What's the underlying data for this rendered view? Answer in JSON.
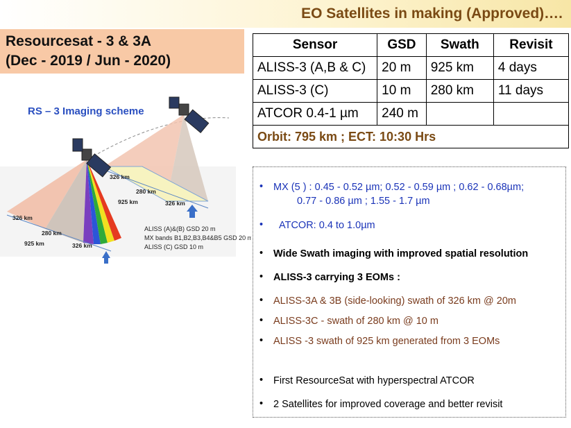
{
  "header": {
    "title": "EO Satellites in making (Approved)…."
  },
  "mission": {
    "name": "Resourcesat - 3 & 3A",
    "dates": "(Dec - 2019 / Jun - 2020)"
  },
  "diagram": {
    "title": "RS – 3 Imaging scheme",
    "labels": [
      "326 km",
      "280 km",
      "925 km",
      "326 km",
      "326 km",
      "280 km",
      "925 km",
      "326 km"
    ],
    "notes": [
      "ALISS (A)&(B) GSD 20 m",
      "MX bands B1,B2,B3,B4&B5 GSD 20 m",
      "ALISS (C) GSD 10 m"
    ]
  },
  "table": {
    "headers": [
      "Sensor",
      "GSD",
      "Swath",
      "Revisit"
    ],
    "rows": [
      [
        "ALISS-3 (A,B & C)",
        "20 m",
        "925 km",
        "4 days"
      ],
      [
        "ALISS-3 (C)",
        "10 m",
        "280 km",
        "11 days"
      ],
      [
        "ATCOR 0.4-1 µm",
        "240 m"
      ]
    ],
    "footer": "Orbit: 795 km ; ECT: 10:30 Hrs"
  },
  "bullets": [
    {
      "text": "MX (5 ) : 0.45 - 0.52 µm; 0.52 - 0.59 µm ; 0.62 - 0.68µm;",
      "text2": "0.77 - 0.86 µm ; 1.55 - 1.7 µm"
    },
    {
      "text": "ATCOR: 0.4 to 1.0µm"
    },
    {
      "text": "Wide Swath imaging with improved spatial resolution"
    },
    {
      "text": "ALISS-3 carrying 3 EOMs :"
    },
    {
      "text": "ALISS-3A & 3B (side-looking) swath of 326 km @ 20m"
    },
    {
      "text": "ALISS-3C - swath of 280 km @ 10 m"
    },
    {
      "text": "ALISS -3 swath of 925 km generated from 3 EOMs"
    },
    {
      "text": "First ResourceSat with hyperspectral ATCOR"
    },
    {
      "text": "2 Satellites for improved coverage and better revisit"
    }
  ]
}
